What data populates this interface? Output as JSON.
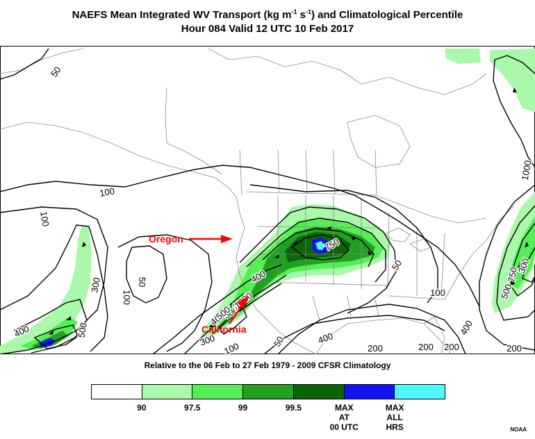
{
  "header": {
    "title_prefix": "NAEFS Mean Integrated WV Transport (kg m",
    "exp1": "-1",
    "title_mid": " s",
    "exp2": "-1",
    "title_suffix": ") and Climatological Percentile",
    "subtitle": "Hour 084 Valid 12 UTC 10 Feb 2017"
  },
  "map": {
    "contour_labels": [
      "50",
      "100",
      "100",
      "50",
      "100",
      "300",
      "400",
      "500",
      "750",
      "400",
      "500",
      "1000",
      "300",
      "400",
      "500",
      "1000",
      "400",
      "200",
      "100",
      "50",
      "50",
      "100",
      "200",
      "200",
      "400",
      "500",
      "750",
      "300",
      "1000",
      "200"
    ],
    "annotations": {
      "oregon": "Oregon",
      "california": "California"
    },
    "colors": {
      "p90": "#ffffff",
      "p97_5": "#aaf8aa",
      "p99": "#55ee55",
      "p99_5": "#22a022",
      "max_00utc": "#0a640a",
      "max_all_hrs": "#1414f0",
      "max_cyan": "#50f8ff",
      "annotation_red": "#ff0000"
    }
  },
  "footer": {
    "climatology": "Relative to the 06 Feb to 27 Feb 1979 - 2009 CFSR Climatology",
    "credit": "NOAA"
  },
  "legend": {
    "swatch_colors": [
      "#ffffff",
      "#aaf8aa",
      "#55ee55",
      "#22a022",
      "#0a640a",
      "#1414f0",
      "#50f8ff"
    ],
    "labels": [
      "90",
      "97.5",
      "99",
      "99.5",
      "MAX\nAT\n00 UTC",
      "MAX\nALL\nHRS"
    ]
  }
}
